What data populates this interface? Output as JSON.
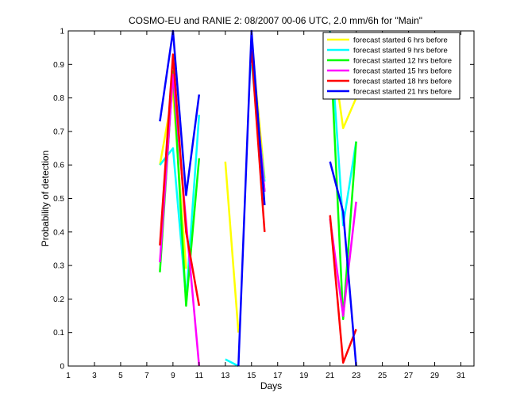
{
  "chart_data": {
    "type": "line",
    "title": "COSMO-EU and RANIE 2: 08/2007 00-06 UTC, 2.0 mm/6h for \"Main\"",
    "xlabel": "Days",
    "ylabel": "Probability of detection",
    "xlim": [
      1,
      32
    ],
    "ylim": [
      0,
      1
    ],
    "xticks": [
      1,
      3,
      5,
      7,
      9,
      11,
      13,
      15,
      17,
      19,
      21,
      23,
      25,
      27,
      29,
      31
    ],
    "yticks": [
      0,
      0.1,
      0.2,
      0.3,
      0.4,
      0.5,
      0.6,
      0.7,
      0.8,
      0.9,
      1
    ],
    "ytick_labels": [
      "0",
      "0.1",
      "0.2",
      "0.3",
      "0.4",
      "0.5",
      "0.6",
      "0.7",
      "0.8",
      "0.9",
      "1"
    ],
    "grid": false,
    "legend_position": "top-right",
    "series": [
      {
        "name": "forecast started 6 hrs before",
        "color": "#ffff00",
        "segments": [
          [
            [
              8,
              0.6
            ],
            [
              9,
              0.82
            ],
            [
              10,
              0.29
            ]
          ],
          [
            [
              13,
              0.61
            ],
            [
              14,
              0.1
            ]
          ],
          [
            [
              15,
              0.97
            ],
            [
              16,
              0.56
            ]
          ],
          [
            [
              21,
              0.99
            ],
            [
              22,
              0.71
            ],
            [
              23,
              0.8
            ]
          ]
        ]
      },
      {
        "name": "forecast started 9 hrs before",
        "color": "#00ffff",
        "segments": [
          [
            [
              8,
              0.6
            ],
            [
              9,
              0.65
            ],
            [
              10,
              0.2
            ],
            [
              11,
              0.75
            ]
          ],
          [
            [
              13,
              0.02
            ],
            [
              14,
              0
            ]
          ],
          [
            [
              15,
              0.9
            ],
            [
              16,
              0.55
            ]
          ],
          [
            [
              21,
              1.0
            ],
            [
              22,
              0.42
            ],
            [
              23,
              0.67
            ]
          ]
        ]
      },
      {
        "name": "forecast started 12 hrs before",
        "color": "#00ff00",
        "segments": [
          [
            [
              8,
              0.28
            ],
            [
              9,
              0.88
            ],
            [
              10,
              0.18
            ],
            [
              11,
              0.62
            ]
          ],
          [
            [
              15,
              0.94
            ],
            [
              16,
              0.52
            ]
          ],
          [
            [
              21,
              0.98
            ],
            [
              22,
              0.14
            ],
            [
              23,
              0.67
            ]
          ]
        ]
      },
      {
        "name": "forecast started 15 hrs before",
        "color": "#ff00ff",
        "segments": [
          [
            [
              8,
              0.31
            ],
            [
              9,
              0.87
            ],
            [
              10,
              0.43
            ],
            [
              11,
              0
            ]
          ],
          [
            [
              15,
              0.95
            ],
            [
              16,
              0.52
            ]
          ],
          [
            [
              21,
              0.44
            ],
            [
              22,
              0.15
            ],
            [
              23,
              0.49
            ]
          ]
        ]
      },
      {
        "name": "forecast started 18 hrs before",
        "color": "#ff0000",
        "segments": [
          [
            [
              8,
              0.36
            ],
            [
              9,
              0.93
            ],
            [
              10,
              0.4
            ],
            [
              11,
              0.18
            ]
          ],
          [
            [
              15,
              0.94
            ],
            [
              16,
              0.4
            ]
          ],
          [
            [
              21,
              0.45
            ],
            [
              22,
              0.01
            ],
            [
              23,
              0.11
            ]
          ]
        ]
      },
      {
        "name": "forecast started 21 hrs before",
        "color": "#0000ff",
        "segments": [
          [
            [
              8,
              0.73
            ],
            [
              9,
              1.0
            ],
            [
              10,
              0.51
            ],
            [
              11,
              0.81
            ]
          ],
          [
            [
              14,
              0
            ],
            [
              15,
              1.0
            ],
            [
              16,
              0.48
            ]
          ],
          [
            [
              21,
              0.61
            ],
            [
              22,
              0.46
            ],
            [
              23,
              0
            ]
          ]
        ]
      }
    ]
  }
}
